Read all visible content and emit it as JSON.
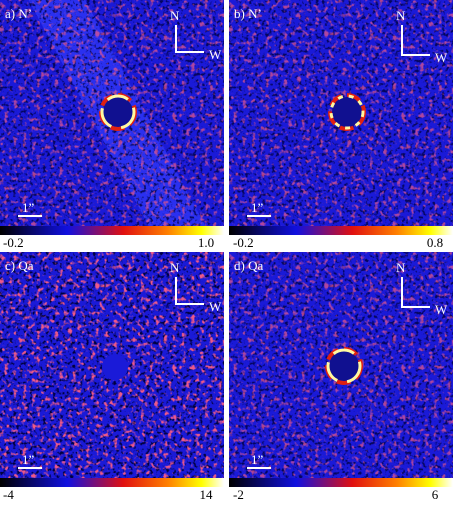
{
  "panels": [
    {
      "label": "a) N’",
      "compass_n": "N",
      "compass_w": "W",
      "scale": "1”",
      "cbar_min": "-0.2",
      "cbar_max": "1.0"
    },
    {
      "label": "b) N’",
      "compass_n": "N",
      "compass_w": "W",
      "scale": "1”",
      "cbar_min": "-0.2",
      "cbar_max": "0.8"
    },
    {
      "label": "c) Qa",
      "compass_n": "N",
      "compass_w": "W",
      "scale": "1”",
      "cbar_min": "-4",
      "cbar_max": "14"
    },
    {
      "label": "d) Qa",
      "compass_n": "N",
      "compass_w": "W",
      "scale": "1”",
      "cbar_min": "-2",
      "cbar_max": "6"
    }
  ]
}
